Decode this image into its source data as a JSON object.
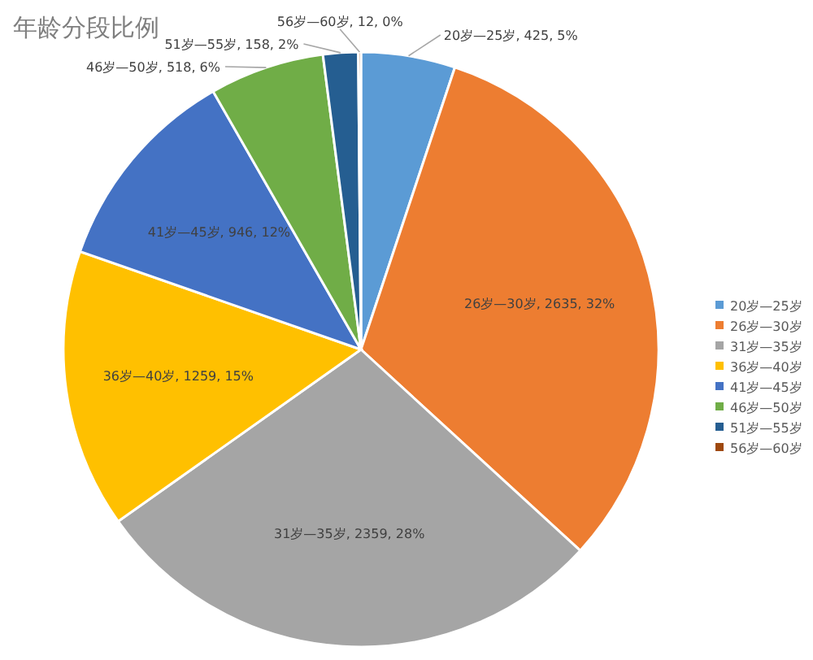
{
  "chart_data": {
    "type": "pie",
    "title": "年龄分段比例",
    "categories": [
      "20岁—25岁",
      "26岁—30岁",
      "31岁—35岁",
      "36岁—40岁",
      "41岁—45岁",
      "46岁—50岁",
      "51岁—55岁",
      "56岁—60岁"
    ],
    "values": [
      425,
      2635,
      2359,
      1259,
      946,
      518,
      158,
      12
    ],
    "colors": [
      "#5b9bd5",
      "#ed7d31",
      "#a5a5a5",
      "#ffc000",
      "#4472c4",
      "#70ad47",
      "#255e91",
      "#9e480e"
    ],
    "value_labels": [
      "20岁—25岁, 425, 5%",
      "26岁—30岁, 2635, 32%",
      "31岁—35岁, 2359, 28%",
      "36岁—40岁, 1259, 15%",
      "41岁—45岁, 946, 12%",
      "46岁—50岁, 518, 6%",
      "51岁—55岁, 158, 2%",
      "56岁—60岁, 12, 0%"
    ],
    "legend": "right"
  }
}
